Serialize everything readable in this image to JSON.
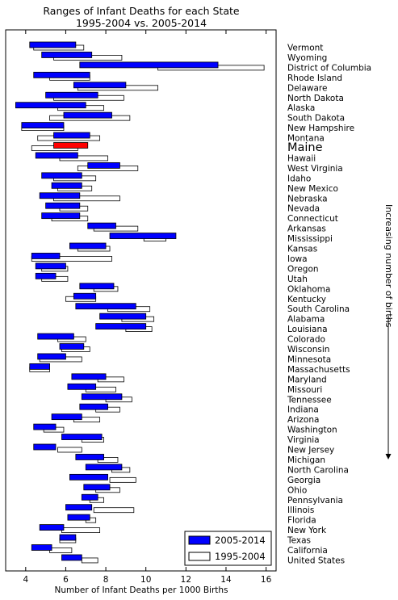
{
  "chart_data": {
    "type": "bar",
    "orientation": "horizontal",
    "variant": "range (floating bars, overlaid)",
    "title": "Ranges of Infant Deaths for each State",
    "subtitle": "1995-2004 vs. 2005-2014",
    "xlabel": "Number of Infant Deaths per 1000 Births",
    "right_label": "Increasing number of births",
    "xlim": [
      3,
      16.5
    ],
    "xticks": [
      4,
      6,
      8,
      10,
      12,
      14,
      16
    ],
    "grid": false,
    "legend": {
      "placement": "bottom-right",
      "entries": [
        {
          "label": "2005-2014",
          "color": "#0000ff"
        },
        {
          "label": "1995-2004",
          "color": "#ffffff"
        }
      ]
    },
    "highlight": {
      "state": "Maine",
      "color": "#ff0000"
    },
    "series": [
      {
        "name": "2005-2014",
        "color": "#0000ff"
      },
      {
        "name": "1995-2004",
        "color": "#ffffff"
      }
    ],
    "states": [
      {
        "name": "Vermont",
        "r2005_2014": [
          4.2,
          6.5
        ],
        "r1995_2004": [
          4.4,
          6.9
        ]
      },
      {
        "name": "Wyoming",
        "r2005_2014": [
          4.8,
          7.3
        ],
        "r1995_2004": [
          5.4,
          8.8
        ]
      },
      {
        "name": "District of Columbia",
        "r2005_2014": [
          6.7,
          13.6
        ],
        "r1995_2004": [
          10.6,
          15.9
        ]
      },
      {
        "name": "Rhode Island",
        "r2005_2014": [
          4.4,
          7.2
        ],
        "r1995_2004": [
          5.2,
          7.2
        ]
      },
      {
        "name": "Delaware",
        "r2005_2014": [
          6.4,
          9.0
        ],
        "r1995_2004": [
          6.6,
          10.6
        ]
      },
      {
        "name": "North Dakota",
        "r2005_2014": [
          5.0,
          7.6
        ],
        "r1995_2004": [
          5.4,
          8.9
        ]
      },
      {
        "name": "Alaska",
        "r2005_2014": [
          3.5,
          7.0
        ],
        "r1995_2004": [
          5.6,
          7.9
        ]
      },
      {
        "name": "South Dakota",
        "r2005_2014": [
          5.9,
          8.3
        ],
        "r1995_2004": [
          5.2,
          9.2
        ]
      },
      {
        "name": "New Hampshire",
        "r2005_2014": [
          3.8,
          5.9
        ],
        "r1995_2004": [
          3.8,
          5.9
        ]
      },
      {
        "name": "Montana",
        "r2005_2014": [
          5.4,
          7.2
        ],
        "r1995_2004": [
          4.6,
          7.7
        ]
      },
      {
        "name": "Maine",
        "r2005_2014": [
          5.4,
          7.1
        ],
        "r1995_2004": [
          4.3,
          6.6
        ]
      },
      {
        "name": "Hawaii",
        "r2005_2014": [
          4.5,
          6.6
        ],
        "r1995_2004": [
          5.7,
          8.1
        ]
      },
      {
        "name": "West Virginia",
        "r2005_2014": [
          7.1,
          8.7
        ],
        "r1995_2004": [
          6.6,
          9.6
        ]
      },
      {
        "name": "Idaho",
        "r2005_2014": [
          4.8,
          6.8
        ],
        "r1995_2004": [
          5.4,
          7.5
        ]
      },
      {
        "name": "New Mexico",
        "r2005_2014": [
          5.3,
          6.8
        ],
        "r1995_2004": [
          5.6,
          7.3
        ]
      },
      {
        "name": "Nebraska",
        "r2005_2014": [
          4.7,
          6.7
        ],
        "r1995_2004": [
          5.4,
          8.7
        ]
      },
      {
        "name": "Nevada",
        "r2005_2014": [
          5.0,
          6.7
        ],
        "r1995_2004": [
          5.7,
          7.1
        ]
      },
      {
        "name": "Connecticut",
        "r2005_2014": [
          4.8,
          6.7
        ],
        "r1995_2004": [
          5.3,
          7.1
        ]
      },
      {
        "name": "Arkansas",
        "r2005_2014": [
          7.1,
          8.5
        ],
        "r1995_2004": [
          7.4,
          9.6
        ]
      },
      {
        "name": "Mississippi",
        "r2005_2014": [
          8.2,
          11.5
        ],
        "r1995_2004": [
          9.9,
          11.0
        ]
      },
      {
        "name": "Kansas",
        "r2005_2014": [
          6.2,
          8.0
        ],
        "r1995_2004": [
          6.6,
          8.2
        ]
      },
      {
        "name": "Iowa",
        "r2005_2014": [
          4.3,
          5.7
        ],
        "r1995_2004": [
          4.3,
          8.3
        ]
      },
      {
        "name": "Oregon",
        "r2005_2014": [
          4.5,
          6.0
        ],
        "r1995_2004": [
          4.8,
          6.1
        ]
      },
      {
        "name": "Utah",
        "r2005_2014": [
          4.5,
          5.5
        ],
        "r1995_2004": [
          4.8,
          6.1
        ]
      },
      {
        "name": "Oklahoma",
        "r2005_2014": [
          6.7,
          8.4
        ],
        "r1995_2004": [
          7.4,
          8.6
        ]
      },
      {
        "name": "Kentucky",
        "r2005_2014": [
          6.4,
          7.5
        ],
        "r1995_2004": [
          6.0,
          7.5
        ]
      },
      {
        "name": "South Carolina",
        "r2005_2014": [
          6.5,
          9.5
        ],
        "r1995_2004": [
          8.1,
          10.2
        ]
      },
      {
        "name": "Alabama",
        "r2005_2014": [
          7.7,
          10.0
        ],
        "r1995_2004": [
          8.8,
          10.4
        ]
      },
      {
        "name": "Louisiana",
        "r2005_2014": [
          7.5,
          10.0
        ],
        "r1995_2004": [
          9.0,
          10.3
        ]
      },
      {
        "name": "Colorado",
        "r2005_2014": [
          4.6,
          6.4
        ],
        "r1995_2004": [
          5.6,
          7.0
        ]
      },
      {
        "name": "Wisconsin",
        "r2005_2014": [
          5.7,
          6.9
        ],
        "r1995_2004": [
          5.8,
          7.2
        ]
      },
      {
        "name": "Minnesota",
        "r2005_2014": [
          4.6,
          6.0
        ],
        "r1995_2004": [
          4.7,
          6.8
        ]
      },
      {
        "name": "Massachusetts",
        "r2005_2014": [
          4.2,
          5.2
        ],
        "r1995_2004": [
          4.2,
          5.2
        ]
      },
      {
        "name": "Maryland",
        "r2005_2014": [
          6.3,
          8.0
        ],
        "r1995_2004": [
          7.6,
          8.9
        ]
      },
      {
        "name": "Missouri",
        "r2005_2014": [
          6.1,
          7.5
        ],
        "r1995_2004": [
          7.0,
          8.5
        ]
      },
      {
        "name": "Tennessee",
        "r2005_2014": [
          6.8,
          8.8
        ],
        "r1995_2004": [
          8.0,
          9.3
        ]
      },
      {
        "name": "Indiana",
        "r2005_2014": [
          6.7,
          8.1
        ],
        "r1995_2004": [
          7.5,
          8.7
        ]
      },
      {
        "name": "Arizona",
        "r2005_2014": [
          5.3,
          6.8
        ],
        "r1995_2004": [
          6.4,
          7.7
        ]
      },
      {
        "name": "Washington",
        "r2005_2014": [
          4.4,
          5.5
        ],
        "r1995_2004": [
          4.9,
          5.9
        ]
      },
      {
        "name": "Virginia",
        "r2005_2014": [
          5.8,
          7.8
        ],
        "r1995_2004": [
          6.8,
          7.9
        ]
      },
      {
        "name": "New Jersey",
        "r2005_2014": [
          4.4,
          5.5
        ],
        "r1995_2004": [
          5.6,
          6.8
        ]
      },
      {
        "name": "Michigan",
        "r2005_2014": [
          6.5,
          7.9
        ],
        "r1995_2004": [
          7.6,
          8.6
        ]
      },
      {
        "name": "North Carolina",
        "r2005_2014": [
          7.0,
          8.8
        ],
        "r1995_2004": [
          8.3,
          9.2
        ]
      },
      {
        "name": "Georgia",
        "r2005_2014": [
          6.2,
          8.1
        ],
        "r1995_2004": [
          8.2,
          9.5
        ]
      },
      {
        "name": "Ohio",
        "r2005_2014": [
          6.9,
          8.2
        ],
        "r1995_2004": [
          7.5,
          8.7
        ]
      },
      {
        "name": "Pennsylvania",
        "r2005_2014": [
          6.8,
          7.6
        ],
        "r1995_2004": [
          7.2,
          7.9
        ]
      },
      {
        "name": "Illinois",
        "r2005_2014": [
          6.0,
          7.3
        ],
        "r1995_2004": [
          7.4,
          9.4
        ]
      },
      {
        "name": "Florida",
        "r2005_2014": [
          6.1,
          7.2
        ],
        "r1995_2004": [
          7.0,
          7.5
        ]
      },
      {
        "name": "New York",
        "r2005_2014": [
          4.7,
          5.9
        ],
        "r1995_2004": [
          5.8,
          7.7
        ]
      },
      {
        "name": "Texas",
        "r2005_2014": [
          5.7,
          6.5
        ],
        "r1995_2004": [
          5.7,
          6.5
        ]
      },
      {
        "name": "California",
        "r2005_2014": [
          4.3,
          5.3
        ],
        "r1995_2004": [
          5.2,
          6.3
        ]
      },
      {
        "name": "United States",
        "r2005_2014": [
          5.8,
          6.8
        ],
        "r1995_2004": [
          6.8,
          7.6
        ]
      }
    ]
  }
}
